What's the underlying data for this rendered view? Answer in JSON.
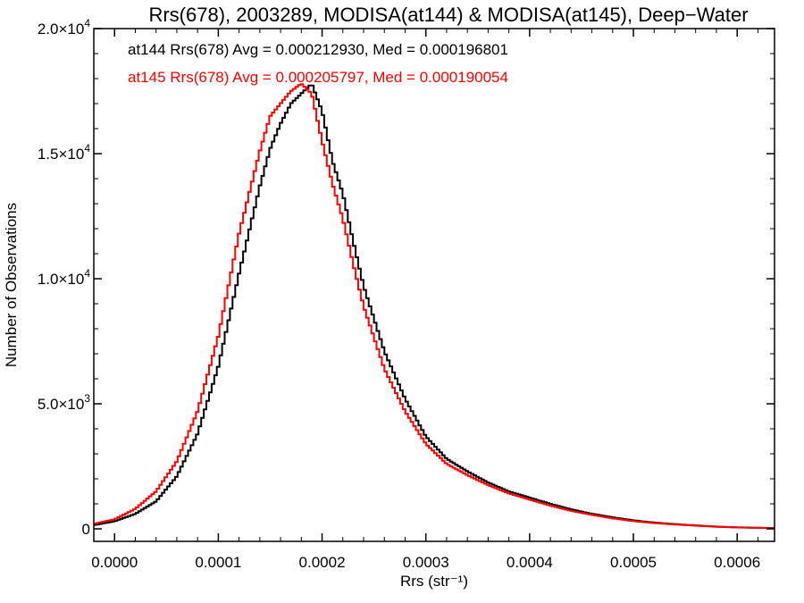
{
  "chart_data": {
    "type": "line",
    "style": "step-histogram",
    "title": "Rrs(678), 2003289, MODISA(at144) & MODISA(at145), Deep−Water",
    "xlabel": "Rrs (str⁻¹)",
    "ylabel": "Number of Observations",
    "xlim": [
      -2e-05,
      0.000636
    ],
    "ylim": [
      -500,
      20000
    ],
    "grid": false,
    "x_ticks": [
      {
        "value": 0.0,
        "label": "0.0000"
      },
      {
        "value": 0.0001,
        "label": "0.0001"
      },
      {
        "value": 0.0002,
        "label": "0.0002"
      },
      {
        "value": 0.0003,
        "label": "0.0003"
      },
      {
        "value": 0.0004,
        "label": "0.0004"
      },
      {
        "value": 0.0005,
        "label": "0.0005"
      },
      {
        "value": 0.0006,
        "label": "0.0006"
      }
    ],
    "y_ticks": [
      {
        "value": 0,
        "mantissa": "0",
        "exp": ""
      },
      {
        "value": 5000,
        "mantissa": "5.0×10",
        "exp": "3"
      },
      {
        "value": 10000,
        "mantissa": "1.0×10",
        "exp": "4"
      },
      {
        "value": 15000,
        "mantissa": "1.5×10",
        "exp": "4"
      },
      {
        "value": 20000,
        "mantissa": "2.0×10",
        "exp": "4"
      }
    ],
    "annotations": [
      {
        "text": "at144 Rrs(678) Avg = 0.000212930, Med = 0.000196801",
        "color": "#000000"
      },
      {
        "text": "at145 Rrs(678) Avg = 0.000205797, Med = 0.000190054",
        "color": "#ff0000"
      }
    ],
    "series": [
      {
        "name": "at144",
        "color": "#000000",
        "x": [
          -2e-05,
          0.0,
          2e-05,
          4e-05,
          6e-05,
          8e-05,
          0.0001,
          0.00012,
          0.00014,
          0.00015,
          0.00016,
          0.00017,
          0.00018,
          0.00019,
          0.0002,
          0.00021,
          0.00022,
          0.00023,
          0.00024,
          0.00026,
          0.00028,
          0.0003,
          0.00032,
          0.00034,
          0.00036,
          0.00038,
          0.0004,
          0.00042,
          0.00044,
          0.00046,
          0.00048,
          0.0005,
          0.00052,
          0.00055,
          0.00058,
          0.0006,
          0.000636
        ],
        "y": [
          150,
          300,
          600,
          1100,
          2100,
          3800,
          6500,
          10200,
          13700,
          15200,
          16200,
          17000,
          17400,
          17800,
          16700,
          14700,
          13400,
          11500,
          9700,
          7100,
          5200,
          3700,
          2800,
          2300,
          1850,
          1500,
          1250,
          1000,
          780,
          600,
          460,
          340,
          250,
          160,
          90,
          60,
          30
        ]
      },
      {
        "name": "at145",
        "color": "#ff0000",
        "x": [
          -2e-05,
          0.0,
          2e-05,
          4e-05,
          6e-05,
          8e-05,
          0.0001,
          0.00012,
          0.00014,
          0.00015,
          0.00016,
          0.00017,
          0.00018,
          0.00019,
          0.0002,
          0.00021,
          0.00022,
          0.00023,
          0.00024,
          0.00026,
          0.00028,
          0.0003,
          0.00032,
          0.00034,
          0.00036,
          0.00038,
          0.0004,
          0.00042,
          0.00044,
          0.00046,
          0.00048,
          0.0005,
          0.00052,
          0.00055,
          0.00058,
          0.0006,
          0.000636
        ],
        "y": [
          200,
          380,
          800,
          1500,
          2700,
          4700,
          7700,
          11800,
          15100,
          16500,
          17000,
          17500,
          17800,
          17400,
          15500,
          13800,
          12400,
          10600,
          8900,
          6400,
          4700,
          3400,
          2600,
          2150,
          1750,
          1420,
          1170,
          930,
          720,
          560,
          420,
          310,
          230,
          150,
          85,
          55,
          25
        ]
      }
    ]
  }
}
